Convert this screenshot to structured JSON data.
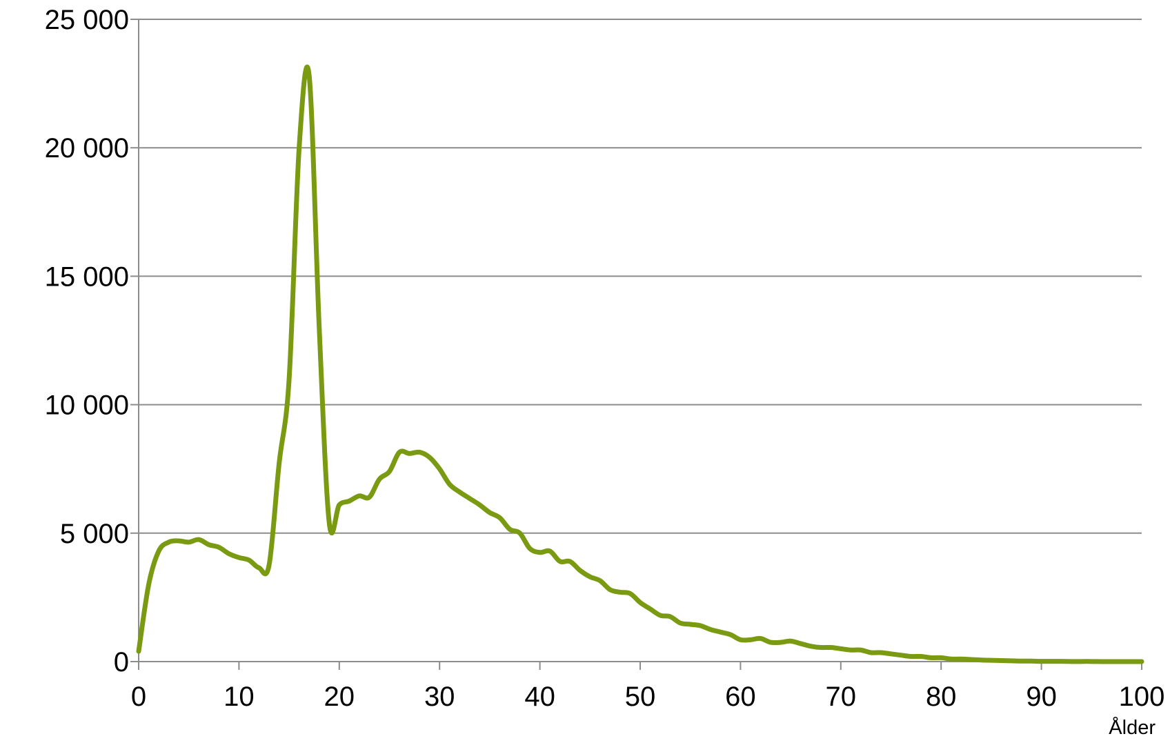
{
  "chart_data": {
    "type": "line",
    "title": "",
    "xlabel": "Ålder",
    "ylabel": "",
    "xlim": [
      0,
      100
    ],
    "ylim": [
      0,
      25000
    ],
    "x_ticks": [
      0,
      10,
      20,
      30,
      40,
      50,
      60,
      70,
      80,
      90,
      100
    ],
    "x_tick_labels": [
      "0",
      "10",
      "20",
      "30",
      "40",
      "50",
      "60",
      "70",
      "80",
      "90",
      "100"
    ],
    "y_ticks": [
      0,
      5000,
      10000,
      15000,
      20000,
      25000
    ],
    "y_tick_labels": [
      "0",
      "5 000",
      "10 000",
      "15 000",
      "20 000",
      "25 000"
    ],
    "grid": "horizontal",
    "legend": "none",
    "line_color": "#7a9a12",
    "gridline_color": "#8c8c8c",
    "axis_color": "#8c8c8c",
    "series": [
      {
        "x": [
          0,
          1,
          2,
          3,
          4,
          5,
          6,
          7,
          8,
          9,
          10,
          11,
          12,
          13,
          14,
          15,
          16,
          17,
          18,
          19,
          20,
          21,
          22,
          23,
          24,
          25,
          26,
          27,
          28,
          29,
          30,
          31,
          32,
          33,
          34,
          35,
          36,
          37,
          38,
          39,
          40,
          41,
          42,
          43,
          44,
          45,
          46,
          47,
          48,
          49,
          50,
          51,
          52,
          53,
          54,
          55,
          56,
          57,
          58,
          59,
          60,
          61,
          62,
          63,
          64,
          65,
          66,
          67,
          68,
          69,
          70,
          71,
          72,
          73,
          74,
          75,
          76,
          77,
          78,
          79,
          80,
          81,
          82,
          83,
          84,
          85,
          86,
          87,
          88,
          89,
          90,
          91,
          92,
          93,
          94,
          95,
          96,
          97,
          98,
          99,
          100
        ],
        "values": [
          400,
          3000,
          4300,
          4650,
          4700,
          4650,
          4750,
          4550,
          4450,
          4200,
          4050,
          3950,
          3650,
          3750,
          7700,
          11000,
          20000,
          22800,
          13000,
          5400,
          6100,
          6250,
          6450,
          6400,
          7100,
          7400,
          8150,
          8100,
          8150,
          7950,
          7500,
          6900,
          6600,
          6350,
          6100,
          5800,
          5600,
          5150,
          5000,
          4400,
          4250,
          4300,
          3900,
          3900,
          3550,
          3300,
          3150,
          2800,
          2700,
          2650,
          2300,
          2050,
          1800,
          1750,
          1500,
          1450,
          1400,
          1250,
          1150,
          1050,
          850,
          850,
          900,
          750,
          750,
          800,
          700,
          600,
          550,
          550,
          500,
          450,
          450,
          350,
          350,
          300,
          250,
          200,
          200,
          150,
          150,
          100,
          100,
          80,
          60,
          50,
          40,
          30,
          20,
          20,
          10,
          10,
          10,
          5,
          5,
          5,
          0,
          0,
          0,
          0,
          0
        ]
      }
    ]
  }
}
